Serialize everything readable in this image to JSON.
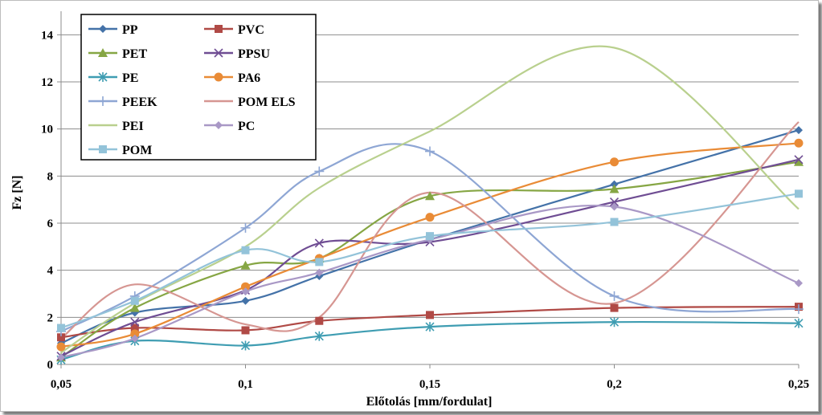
{
  "chart_data": {
    "type": "line",
    "title": "",
    "xlabel": "Előtolás [mm/fordulat]",
    "ylabel": "Fz [N]",
    "x": [
      0.05,
      0.07,
      0.1,
      0.12,
      0.15,
      0.2,
      0.25
    ],
    "xlim": [
      0.05,
      0.25
    ],
    "ylim": [
      0,
      15
    ],
    "xticks": [
      0.05,
      0.1,
      0.15,
      0.2,
      0.25
    ],
    "xtick_labels": [
      "0,05",
      "0,1",
      "0,15",
      "0,2",
      "0,25"
    ],
    "yticks": [
      0,
      2,
      4,
      6,
      8,
      10,
      12,
      14
    ],
    "ytick_labels": [
      "0",
      "2",
      "4",
      "6",
      "8",
      "10",
      "12",
      "14"
    ],
    "grid": "horizontal",
    "legend_position": "top-left",
    "series": [
      {
        "name": "PP",
        "color": "#4472a8",
        "marker": "diamond",
        "values": [
          0.9,
          2.2,
          2.7,
          3.75,
          5.3,
          7.65,
          9.95
        ]
      },
      {
        "name": "PVC",
        "color": "#b04a46",
        "marker": "square",
        "values": [
          1.15,
          1.55,
          1.45,
          1.85,
          2.1,
          2.4,
          2.45
        ]
      },
      {
        "name": "PET",
        "color": "#86a644",
        "marker": "triangle",
        "values": [
          0.3,
          2.4,
          4.2,
          4.5,
          7.15,
          7.45,
          8.6
        ]
      },
      {
        "name": "PPSU",
        "color": "#6f4d93",
        "marker": "x",
        "values": [
          0.35,
          1.8,
          3.15,
          5.15,
          5.2,
          6.9,
          8.7
        ]
      },
      {
        "name": "PE",
        "color": "#3f9db2",
        "marker": "star",
        "values": [
          0.2,
          1.0,
          0.8,
          1.2,
          1.6,
          1.8,
          1.75
        ]
      },
      {
        "name": "PA6",
        "color": "#e98b36",
        "marker": "circle",
        "values": [
          0.75,
          1.3,
          3.3,
          4.5,
          6.25,
          8.6,
          9.4
        ]
      },
      {
        "name": "PEEK",
        "color": "#8ea6d4",
        "marker": "plus",
        "values": [
          1.4,
          2.9,
          5.8,
          8.2,
          9.05,
          2.9,
          2.35
        ]
      },
      {
        "name": "POM ELS",
        "color": "#d69692",
        "marker": "none",
        "values": [
          1.1,
          3.4,
          1.7,
          2.0,
          7.3,
          2.6,
          10.3
        ]
      },
      {
        "name": "PEI",
        "color": "#b9d08e",
        "marker": "none",
        "values": [
          0.5,
          2.6,
          5.0,
          7.5,
          9.9,
          13.45,
          6.6
        ]
      },
      {
        "name": "PC",
        "color": "#a998c6",
        "marker": "diamond",
        "values": [
          0.3,
          1.1,
          3.1,
          3.9,
          5.3,
          6.7,
          3.45
        ]
      },
      {
        "name": "POM",
        "color": "#93c3d9",
        "marker": "square",
        "values": [
          1.55,
          2.7,
          4.85,
          4.35,
          5.45,
          6.05,
          7.25
        ]
      }
    ]
  }
}
